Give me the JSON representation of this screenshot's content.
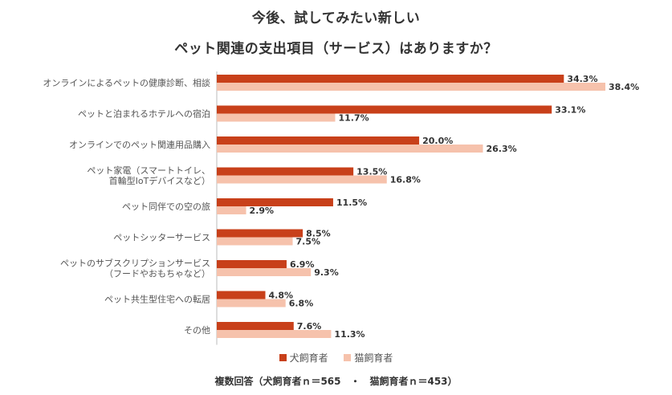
{
  "title_line1": "今後、試してみたい新しい",
  "title_line2": "ペット関連の支出項目（サービス）はありますか？",
  "colors": {
    "dog": "#c8401a",
    "cat": "#f6c2ac"
  },
  "legend": {
    "dog": "犬飼育者",
    "cat": "猫飼育者"
  },
  "footnote": "複数回答（犬飼育者ｎ＝565　・　猫飼育者ｎ＝453）",
  "chart_data": {
    "type": "bar",
    "orientation": "horizontal",
    "categories": [
      [
        "オンラインによるペットの健康診断、相談"
      ],
      [
        "ペットと泊まれるホテルへの宿泊"
      ],
      [
        "オンラインでのペット関連用品購入"
      ],
      [
        "ペット家電（スマートトイレ、",
        "首輪型IoTデバイスなど）"
      ],
      [
        "ペット同伴での空の旅"
      ],
      [
        "ペットシッターサービス"
      ],
      [
        "ペットのサブスクリプションサービス",
        "（フードやおもちゃなど）"
      ],
      [
        "ペット共生型住宅への転居"
      ],
      [
        "その他"
      ]
    ],
    "series": [
      {
        "name": "犬飼育者",
        "values": [
          34.3,
          33.1,
          20.0,
          13.5,
          11.5,
          8.5,
          6.9,
          4.8,
          7.6
        ]
      },
      {
        "name": "猫飼育者",
        "values": [
          38.4,
          11.7,
          26.3,
          16.8,
          2.9,
          7.5,
          9.3,
          6.8,
          11.3
        ]
      }
    ],
    "value_format": "%",
    "xlim": [
      0,
      40
    ],
    "grid": false,
    "legend_position": "bottom"
  }
}
